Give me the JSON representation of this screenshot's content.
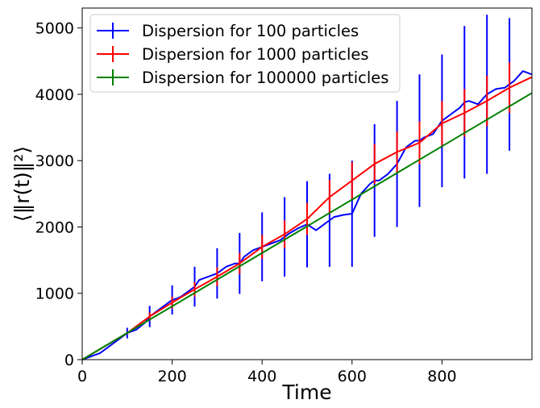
{
  "chart_data": {
    "type": "line",
    "xlabel": "Time",
    "ylabel": "⟨‖r(t)‖²⟩",
    "xlim": [
      0,
      1000
    ],
    "ylim": [
      0,
      5300
    ],
    "xticks": [
      0,
      200,
      400,
      600,
      800
    ],
    "yticks": [
      0,
      1000,
      2000,
      3000,
      4000,
      5000
    ],
    "grid": false,
    "legend_position": "top-left",
    "series": [
      {
        "name": "Dispersion for 100 particles",
        "color": "#0000ff",
        "x": [
          0,
          20,
          40,
          50,
          60,
          80,
          100,
          120,
          140,
          150,
          160,
          180,
          200,
          210,
          220,
          240,
          250,
          260,
          280,
          300,
          320,
          340,
          350,
          360,
          380,
          400,
          420,
          440,
          450,
          460,
          480,
          500,
          520,
          540,
          550,
          560,
          580,
          600,
          620,
          640,
          650,
          660,
          680,
          700,
          720,
          740,
          750,
          760,
          780,
          800,
          820,
          840,
          850,
          860,
          880,
          900,
          920,
          940,
          950,
          960,
          980,
          1000
        ],
        "y": [
          0,
          50,
          100,
          150,
          200,
          300,
          400,
          450,
          560,
          650,
          700,
          800,
          900,
          920,
          950,
          1050,
          1100,
          1200,
          1250,
          1300,
          1400,
          1450,
          1450,
          1550,
          1650,
          1700,
          1750,
          1800,
          1850,
          1900,
          1980,
          2040,
          1950,
          2050,
          2100,
          2150,
          2180,
          2200,
          2500,
          2650,
          2700,
          2700,
          2800,
          2950,
          3200,
          3300,
          3300,
          3350,
          3400,
          3600,
          3700,
          3800,
          3880,
          3900,
          3850,
          4000,
          4080,
          4100,
          4150,
          4200,
          4350,
          4300
        ],
        "error_x": [
          100,
          150,
          200,
          250,
          300,
          350,
          400,
          450,
          500,
          550,
          600,
          650,
          700,
          750,
          800,
          850,
          900,
          950
        ],
        "error_y": [
          80,
          160,
          220,
          300,
          380,
          460,
          520,
          600,
          650,
          700,
          800,
          850,
          950,
          1000,
          1000,
          1150,
          1200,
          1000
        ]
      },
      {
        "name": "Dispersion for 1000 particles",
        "color": "#ff0000",
        "x": [
          0,
          50,
          100,
          150,
          200,
          250,
          300,
          350,
          400,
          450,
          500,
          550,
          600,
          650,
          700,
          750,
          800,
          850,
          900,
          950,
          1000
        ],
        "y": [
          0,
          200,
          400,
          650,
          860,
          1060,
          1250,
          1450,
          1700,
          1890,
          2120,
          2450,
          2700,
          2950,
          3130,
          3270,
          3560,
          3720,
          3900,
          4100,
          4260
        ],
        "error_x": [
          150,
          200,
          250,
          300,
          350,
          400,
          450,
          500,
          550,
          600,
          650,
          700,
          750,
          800,
          850,
          900,
          950
        ],
        "error_y": [
          60,
          90,
          110,
          140,
          160,
          180,
          210,
          240,
          260,
          280,
          300,
          310,
          320,
          340,
          360,
          380,
          380
        ]
      },
      {
        "name": "Dispersion for 100000 particles",
        "color": "#008000",
        "x": [
          0,
          1000
        ],
        "y": [
          0,
          4020
        ],
        "error_x": [
          50,
          100,
          150,
          200,
          250,
          300,
          350,
          400,
          450,
          500,
          550,
          600,
          650,
          700,
          750,
          800,
          850,
          900,
          950
        ],
        "error_y": [
          10,
          10,
          10,
          10,
          10,
          10,
          10,
          10,
          10,
          10,
          10,
          10,
          10,
          10,
          10,
          10,
          10,
          10,
          10
        ]
      }
    ]
  }
}
